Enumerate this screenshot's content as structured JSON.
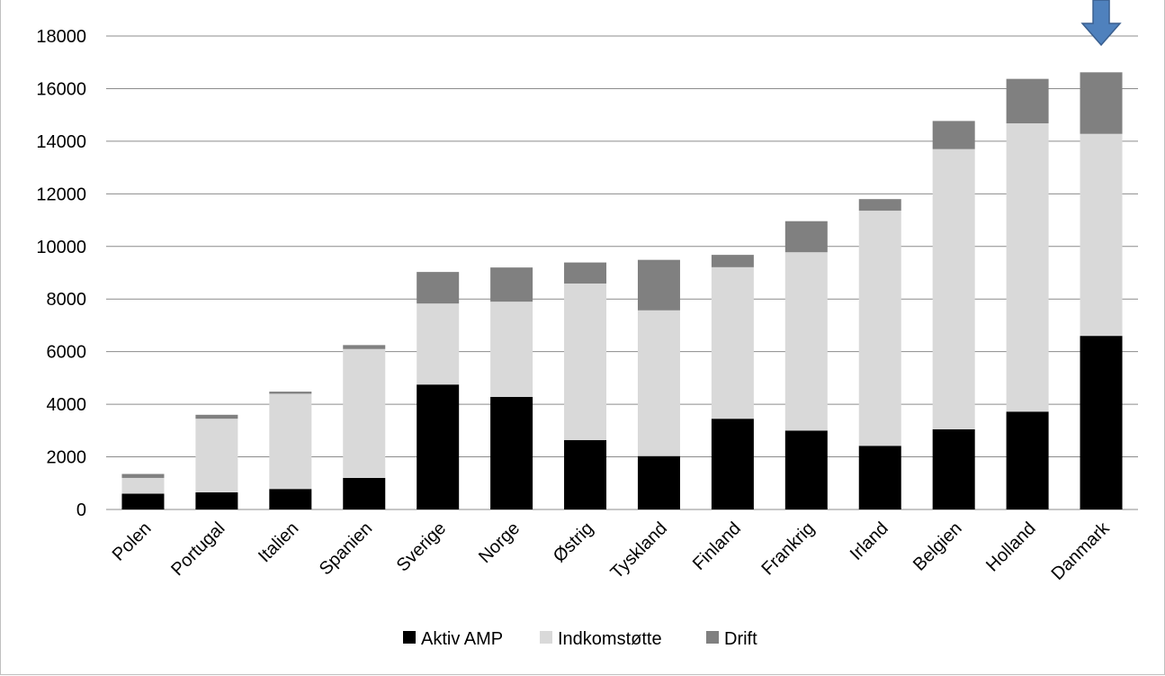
{
  "chart_data": {
    "type": "bar",
    "stacked": true,
    "categories": [
      "Polen",
      "Portugal",
      "Italien",
      "Spanien",
      "Sverige",
      "Norge",
      "Østrig",
      "Tyskland",
      "Finland",
      "Frankrig",
      "Irland",
      "Belgien",
      "Holland",
      "Danmark"
    ],
    "series": [
      {
        "name": "Aktiv AMP",
        "color": "#000000",
        "values": [
          600,
          650,
          780,
          1200,
          4750,
          4280,
          2640,
          2030,
          3450,
          3000,
          2420,
          3050,
          3720,
          6600
        ]
      },
      {
        "name": "Indkomstøtte",
        "color": "#d9d9d9",
        "values": [
          600,
          2800,
          3620,
          4900,
          3080,
          3620,
          5950,
          5540,
          5760,
          6780,
          8940,
          10650,
          10960,
          7680
        ]
      },
      {
        "name": "Drift",
        "color": "#808080",
        "values": [
          150,
          150,
          80,
          150,
          1200,
          1300,
          800,
          1920,
          470,
          1180,
          440,
          1070,
          1690,
          2340
        ]
      }
    ],
    "ylim": [
      0,
      18000
    ],
    "yticks": [
      0,
      2000,
      4000,
      6000,
      8000,
      10000,
      12000,
      14000,
      16000,
      18000
    ],
    "grid": true,
    "legend_position": "bottom",
    "annotation": {
      "type": "arrow",
      "direction": "down",
      "target_category": "Danmark",
      "color": "#4f81bd"
    }
  }
}
